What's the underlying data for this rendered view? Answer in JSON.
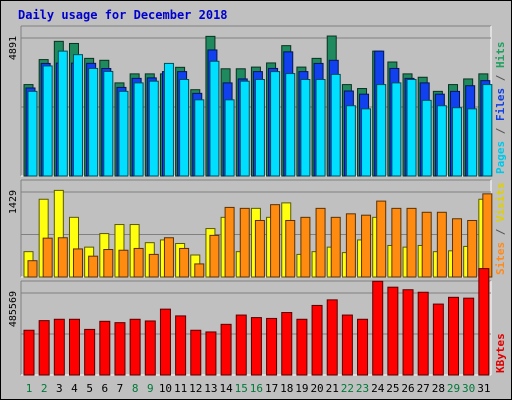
{
  "chart_data": {
    "type": "bar",
    "title": "Daily usage for December 2018",
    "categories": [
      "1",
      "2",
      "3",
      "4",
      "5",
      "6",
      "7",
      "8",
      "9",
      "10",
      "11",
      "12",
      "13",
      "14",
      "15",
      "16",
      "17",
      "18",
      "19",
      "20",
      "21",
      "22",
      "23",
      "24",
      "25",
      "26",
      "27",
      "28",
      "29",
      "30",
      "31"
    ],
    "weekend_days": [
      "1",
      "2",
      "8",
      "9",
      "15",
      "16",
      "22",
      "23",
      "29",
      "30"
    ],
    "panels": [
      {
        "id": "hits-files-pages",
        "ymax_label": "4891",
        "ymax": 4891,
        "grid": true,
        "axis_label_parts": [
          {
            "text": "Pages",
            "color": "#00c8e8"
          },
          {
            "text": " / ",
            "color": "#555555"
          },
          {
            "text": "Files",
            "color": "#1040e0"
          },
          {
            "text": " / ",
            "color": "#555555"
          },
          {
            "text": "Hits",
            "color": "#20a060"
          }
        ],
        "series": [
          {
            "name": "Hits",
            "color": "#1f8a5e",
            "values": [
              3240,
              4126,
              4773,
              4697,
              4169,
              4101,
              3300,
              3620,
              3620,
              3620,
              3852,
              3059,
              4949,
              3800,
              3800,
              3860,
              4007,
              4620,
              3860,
              4169,
              4961,
              3240,
              3100,
              4426,
              4040,
              3620,
              3500,
              3000,
              3240,
              3440,
              3620
            ]
          },
          {
            "name": "Files",
            "color": "#1140ee",
            "values": [
              3120,
              3990,
              4000,
              4000,
              3993,
              3810,
              3140,
              3460,
              3477,
              3700,
              3700,
              2930,
              4467,
              3300,
              3440,
              3700,
              3812,
              4400,
              3700,
              3990,
              4100,
              3013,
              2900,
              4426,
              3812,
              3460,
              3300,
              2900,
              3000,
              3200,
              3380
            ]
          },
          {
            "name": "Pages",
            "color": "#00dfff",
            "values": [
              3000,
              3900,
              4426,
              4300,
              3812,
              3705,
              3000,
              3300,
              3360,
              3990,
              3420,
              2700,
              4066,
              2700,
              3360,
              3420,
              3700,
              3630,
              3420,
              3420,
              3600,
              2490,
              2380,
              3240,
              3300,
              3420,
              2680,
              2490,
              2420,
              2380,
              3240
            ]
          }
        ]
      },
      {
        "id": "visits-sites",
        "ymax_label": "1429",
        "ymax": 1429,
        "grid": true,
        "axis_label_parts": [
          {
            "text": "Sites",
            "color": "#ff8a1a"
          },
          {
            "text": " / ",
            "color": "#555555"
          },
          {
            "text": "Visits",
            "color": "#e0d000"
          }
        ],
        "series": [
          {
            "name": "Visits",
            "color": "#ffff10",
            "values": [
              426,
              1307,
              1456,
              1003,
              502,
              730,
              882,
              882,
              577,
              623,
              563,
              370,
              814,
              1003,
              426,
              1154,
              1003,
              1246,
              380,
              426,
              502,
              410,
              623,
              1003,
              530,
              502,
              530,
              426,
              440,
              514,
              1307
            ]
          },
          {
            "name": "Sites",
            "color": "#ff8c10",
            "values": [
              274,
              653,
              660,
              472,
              350,
              462,
              450,
              480,
              380,
              660,
              480,
              220,
              700,
              1170,
              1154,
              950,
              1216,
              950,
              1003,
              1154,
              1003,
              1062,
              1039,
              1276,
              1154,
              1154,
              1088,
              1088,
              979,
              950,
              1398
            ]
          }
        ]
      },
      {
        "id": "kbytes",
        "ymax_label": "485569",
        "ymax": 485569,
        "grid": true,
        "axis_label_parts": [
          {
            "text": "KBytes",
            "color": "#e00000"
          }
        ],
        "series": [
          {
            "name": "KBytes",
            "color": "#ff0000",
            "values": [
              265000,
              322000,
              330000,
              330000,
              270000,
              318000,
              310000,
              330000,
              320000,
              390000,
              350000,
              265000,
              255000,
              300000,
              355000,
              340000,
              335000,
              370000,
              330000,
              412000,
              445000,
              355000,
              330000,
              555000,
              520000,
              505000,
              490000,
              420000,
              460000,
              455000,
              630000
            ]
          }
        ]
      }
    ]
  }
}
